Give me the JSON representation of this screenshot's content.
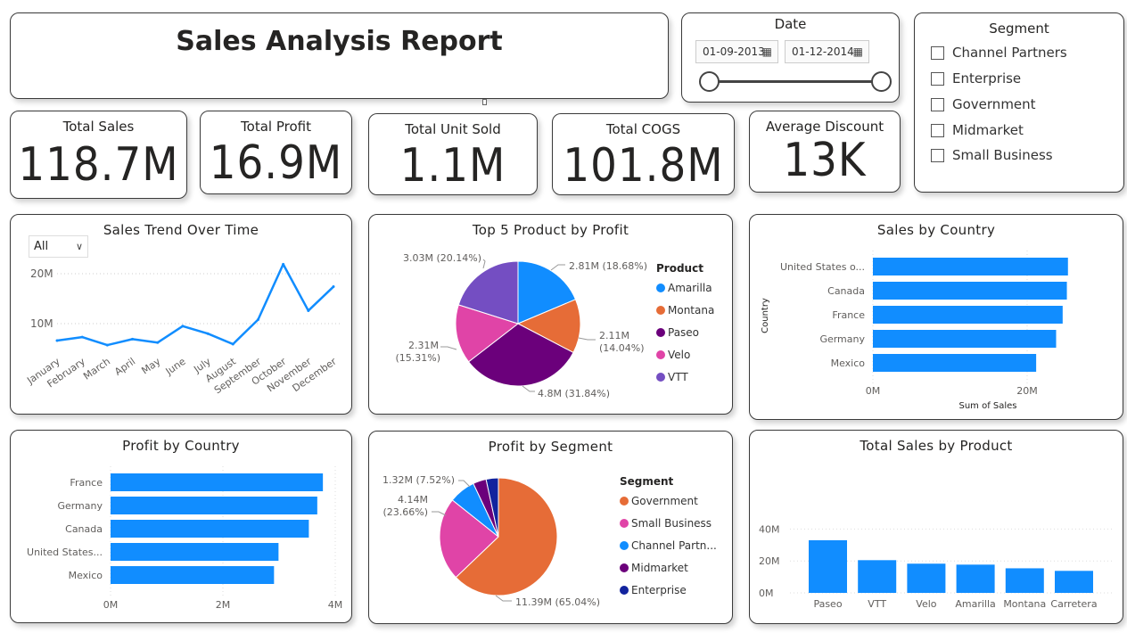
{
  "report": {
    "title": "Sales Analysis Report"
  },
  "date_filter": {
    "title": "Date",
    "start": "01-09-2013",
    "end": "01-12-2014"
  },
  "segment_filter": {
    "title": "Segment",
    "options": [
      "Channel Partners",
      "Enterprise",
      "Government",
      "Midmarket",
      "Small Business"
    ]
  },
  "kpis": [
    {
      "label": "Total Sales",
      "value": "118.7M"
    },
    {
      "label": "Total Profit",
      "value": "16.9M"
    },
    {
      "label": "Total Unit Sold",
      "value": "1.1M"
    },
    {
      "label": "Total COGS",
      "value": "101.8M"
    },
    {
      "label": "Average Discount",
      "value": "13K"
    }
  ],
  "colors": {
    "bar": "#118DFF",
    "line": "#118DFF"
  },
  "chart_data": [
    {
      "id": "sales_trend",
      "type": "line",
      "title": "Sales Trend Over Time",
      "dropdown": "All",
      "categories": [
        "January",
        "February",
        "March",
        "April",
        "May",
        "June",
        "July",
        "August",
        "September",
        "October",
        "November",
        "December"
      ],
      "values": [
        6.6,
        7.3,
        5.7,
        6.9,
        6.2,
        9.5,
        8.0,
        5.9,
        10.8,
        21.9,
        12.6,
        17.4
      ],
      "yticks": [
        "10M",
        "20M"
      ],
      "ylim": [
        0,
        25
      ]
    },
    {
      "id": "top5_product_profit",
      "type": "pie",
      "title": "Top 5 Product by Profit",
      "legend_title": "Product",
      "slices": [
        {
          "name": "Amarilla",
          "value": 2.81,
          "label": "2.81M (18.68%)",
          "color": "#118DFF"
        },
        {
          "name": "Montana",
          "value": 2.11,
          "label1": "2.11M",
          "label2": "(14.04%)",
          "color": "#E66C37"
        },
        {
          "name": "Paseo",
          "value": 4.8,
          "label": "4.8M (31.84%)",
          "color": "#6B007B"
        },
        {
          "name": "Velo",
          "value": 2.31,
          "label1": "2.31M",
          "label2": "(15.31%)",
          "color": "#E044A7"
        },
        {
          "name": "VTT",
          "value": 3.03,
          "label": "3.03M (20.14%)",
          "color": "#744EC2"
        }
      ]
    },
    {
      "id": "sales_by_country",
      "type": "bar",
      "title": "Sales by Country",
      "categories": [
        "United States o...",
        "Canada",
        "France",
        "Germany",
        "Mexico"
      ],
      "values": [
        25.03,
        24.89,
        24.35,
        23.51,
        20.95
      ],
      "xticks": [
        "0M",
        "20M"
      ],
      "xlabel": "Sum of Sales",
      "ylabel": "Country",
      "xlim": [
        0,
        27
      ]
    },
    {
      "id": "profit_by_country",
      "type": "bar",
      "title": "Profit by Country",
      "categories": [
        "France",
        "Germany",
        "Canada",
        "United States...",
        "Mexico"
      ],
      "values": [
        3.78,
        3.68,
        3.53,
        2.99,
        2.91
      ],
      "xticks": [
        "0M",
        "2M",
        "4M"
      ],
      "xlim": [
        0,
        4
      ]
    },
    {
      "id": "profit_by_segment",
      "type": "pie",
      "title": "Profit by Segment",
      "legend_title": "Segment",
      "slices": [
        {
          "name": "Government",
          "value": 11.39,
          "label": "11.39M (65.04%)",
          "color": "#E66C37"
        },
        {
          "name": "Small Business",
          "value": 4.14,
          "label1": "4.14M",
          "label2": "(23.66%)",
          "color": "#E044A7"
        },
        {
          "name": "Channel Partn...",
          "value": 1.32,
          "label": "1.32M (7.52%)",
          "color": "#118DFF"
        },
        {
          "name": "Midmarket",
          "value": 0.66,
          "color": "#6B007B"
        },
        {
          "name": "Enterprise",
          "value": -0.61,
          "color": "#12239E"
        }
      ]
    },
    {
      "id": "total_sales_by_product",
      "type": "bar",
      "title": "Total Sales by Product",
      "categories": [
        "Paseo",
        "VTT",
        "Velo",
        "Amarilla",
        "Montana",
        "Carretera"
      ],
      "values": [
        33.0,
        20.5,
        18.3,
        17.7,
        15.4,
        13.8
      ],
      "yticks": [
        "0M",
        "20M",
        "40M"
      ],
      "ylim": [
        0,
        40
      ]
    }
  ]
}
